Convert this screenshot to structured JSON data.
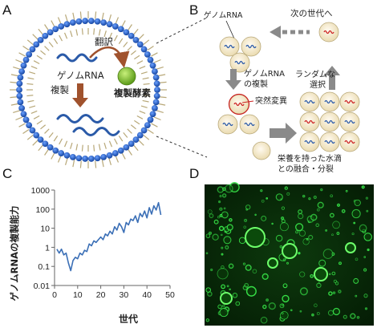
{
  "panels": {
    "a": {
      "letter": "A",
      "translation_label": "翻訳",
      "genome_label": "ゲノムRNA",
      "replication_label": "複製",
      "enzyme_label": "複製酵素"
    },
    "b": {
      "letter": "B",
      "genome_label": "ゲノムRNA",
      "next_generation_label": "次の世代へ",
      "replication_label": [
        "ゲノムRNA",
        "の複製"
      ],
      "random_selection_label": [
        "ランダムな",
        "選択"
      ],
      "mutation_label": "突然変異",
      "fusion_label": [
        "栄養を持った水滴",
        "との融合・分裂"
      ]
    },
    "c": {
      "letter": "C",
      "xlabel": "世代",
      "ylabel": "ゲノムRNAの複製能力"
    },
    "d": {
      "letter": "D"
    }
  },
  "colors": {
    "membrane_bead": "#1f5fbf",
    "rna_blue": "#2a5aa8",
    "rna_red": "#cc2222",
    "enzyme": "#7dbb2a",
    "arrow_brown": "#a0522d",
    "arrow_gray": "#8a8a8a",
    "droplet_fill": "#f5ecd0",
    "line_series": "#3b6fb6",
    "micro_bg": "#062806",
    "micro_green": "#39e84a"
  },
  "icons": {
    "enzyme": "green-sphere",
    "droplet": "cream-circle",
    "mutation_marker": "red-ring"
  },
  "chart_data": {
    "type": "line",
    "title": "",
    "xlabel": "世代",
    "ylabel": "ゲノムRNAの複製能力",
    "y_scale": "log",
    "xlim": [
      0,
      50
    ],
    "ylim": [
      0.01,
      1000
    ],
    "grid": false,
    "legend": "none",
    "x_ticks": [
      0,
      10,
      20,
      30,
      40,
      50
    ],
    "y_ticks": [
      0.01,
      0.1,
      1,
      10,
      100,
      1000
    ],
    "y_tick_labels": [
      "0.01",
      "0.1",
      "1",
      "10",
      "100",
      "1000"
    ],
    "series": [
      {
        "x": [
          1,
          2,
          3,
          4,
          5,
          6,
          7,
          8,
          9,
          10,
          11,
          12,
          13,
          14,
          15,
          16,
          17,
          18,
          19,
          20,
          21,
          22,
          23,
          24,
          25,
          26,
          27,
          28,
          29,
          30,
          31,
          32,
          33,
          34,
          35,
          36,
          37,
          38,
          39,
          40,
          41,
          42,
          43,
          44,
          45,
          46
        ],
        "values": [
          0.8,
          0.5,
          0.8,
          0.4,
          0.5,
          0.15,
          0.06,
          0.2,
          0.3,
          0.25,
          0.5,
          0.4,
          0.7,
          0.6,
          1.5,
          1.2,
          2.2,
          1.8,
          2.5,
          3.5,
          2.5,
          5,
          4,
          7,
          5,
          12,
          8,
          18,
          12,
          6,
          20,
          15,
          30,
          25,
          45,
          20,
          60,
          40,
          80,
          35,
          120,
          55,
          150,
          90,
          220,
          50
        ]
      }
    ]
  }
}
